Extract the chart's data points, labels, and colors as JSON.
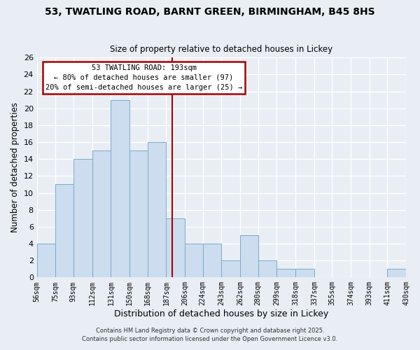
{
  "title1": "53, TWATLING ROAD, BARNT GREEN, BIRMINGHAM, B45 8HS",
  "title2": "Size of property relative to detached houses in Lickey",
  "xlabel": "Distribution of detached houses by size in Lickey",
  "ylabel": "Number of detached properties",
  "bar_color": "#ccddef",
  "bar_edgecolor": "#7aaac8",
  "bins": [
    56,
    75,
    93,
    112,
    131,
    150,
    168,
    187,
    206,
    224,
    243,
    262,
    280,
    299,
    318,
    337,
    355,
    374,
    393,
    411,
    430
  ],
  "counts": [
    4,
    11,
    14,
    15,
    21,
    15,
    16,
    7,
    4,
    4,
    2,
    5,
    2,
    1,
    1,
    0,
    0,
    0,
    0,
    1
  ],
  "vline_x": 193,
  "vline_color": "#aa0000",
  "ylim": [
    0,
    26
  ],
  "yticks": [
    0,
    2,
    4,
    6,
    8,
    10,
    12,
    14,
    16,
    18,
    20,
    22,
    24,
    26
  ],
  "xtick_labels": [
    "56sqm",
    "75sqm",
    "93sqm",
    "112sqm",
    "131sqm",
    "150sqm",
    "168sqm",
    "187sqm",
    "206sqm",
    "224sqm",
    "243sqm",
    "262sqm",
    "280sqm",
    "299sqm",
    "318sqm",
    "337sqm",
    "355sqm",
    "374sqm",
    "393sqm",
    "411sqm",
    "430sqm"
  ],
  "annotation_title": "53 TWATLING ROAD: 193sqm",
  "annotation_line1": "← 80% of detached houses are smaller (97)",
  "annotation_line2": "20% of semi-detached houses are larger (25) →",
  "annotation_box_color": "#ffffff",
  "annotation_box_edgecolor": "#aa0000",
  "footnote1": "Contains HM Land Registry data © Crown copyright and database right 2025.",
  "footnote2": "Contains public sector information licensed under the Open Government Licence v3.0.",
  "background_color": "#e8eef4",
  "grid_color": "#ffffff",
  "spine_color": "#7aaac8"
}
